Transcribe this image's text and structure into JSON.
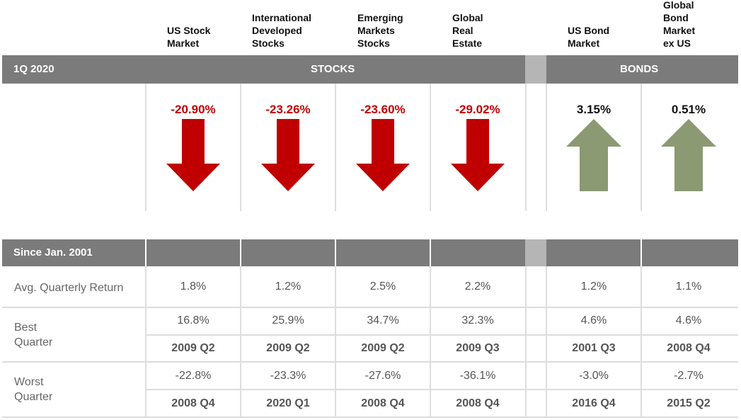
{
  "columns": [
    {
      "header": "US Stock\nMarket",
      "return": "-20.90%",
      "direction": "down",
      "avg": "1.8%",
      "best": "16.8%",
      "best_q": "2009 Q2",
      "worst": "-22.8%",
      "worst_q": "2008 Q4"
    },
    {
      "header": "International\nDeveloped\nStocks",
      "return": "-23.26%",
      "direction": "down",
      "avg": "1.2%",
      "best": "25.9%",
      "best_q": "2009 Q2",
      "worst": "-23.3%",
      "worst_q": "2020 Q1"
    },
    {
      "header": "Emerging\nMarkets\nStocks",
      "return": "-23.60%",
      "direction": "down",
      "avg": "2.5%",
      "best": "34.7%",
      "best_q": "2009 Q2",
      "worst": "-27.6%",
      "worst_q": "2008 Q4"
    },
    {
      "header": "Global\nReal\nEstate",
      "return": "-29.02%",
      "direction": "down",
      "avg": "2.2%",
      "best": "32.3%",
      "best_q": "2009 Q3",
      "worst": "-36.1%",
      "worst_q": "2008 Q4"
    },
    {
      "header": "US Bond\nMarket",
      "return": "3.15%",
      "direction": "up",
      "avg": "1.2%",
      "best": "4.6%",
      "best_q": "2001 Q3",
      "worst": "-3.0%",
      "worst_q": "2016 Q4"
    },
    {
      "header": "Global\nBond\nMarket\nex US",
      "return": "0.51%",
      "direction": "up",
      "avg": "1.1%",
      "best": "4.6%",
      "best_q": "2008 Q4",
      "worst": "-2.7%",
      "worst_q": "2015 Q2"
    }
  ],
  "bar1": {
    "period": "1Q 2020",
    "stocks": "STOCKS",
    "bonds": "BONDS"
  },
  "bar2": {
    "period": "Since Jan. 2001"
  },
  "rows": {
    "avg": "Avg. Quarterly Return",
    "best": "Best\nQuarter",
    "worst": "Worst\nQuarter"
  },
  "colors": {
    "down": "#c00000",
    "up": "#8b9a72",
    "bar": "#7b7b7b",
    "bar_light": "#b5b5b5"
  },
  "chart_data": {
    "type": "table",
    "title": "",
    "period_label": "1Q 2020",
    "groups": [
      {
        "name": "STOCKS",
        "categories": [
          "US Stock Market",
          "International Developed Stocks",
          "Emerging Markets Stocks",
          "Global Real Estate"
        ]
      },
      {
        "name": "BONDS",
        "categories": [
          "US Bond Market",
          "Global Bond Market ex US"
        ]
      }
    ],
    "categories": [
      "US Stock Market",
      "International Developed Stocks",
      "Emerging Markets Stocks",
      "Global Real Estate",
      "US Bond Market",
      "Global Bond Market ex US"
    ],
    "returns_1q2020": [
      -20.9,
      -23.26,
      -23.6,
      -29.02,
      3.15,
      0.51
    ],
    "since_label": "Since Jan. 2001",
    "avg_quarterly_return": [
      1.8,
      1.2,
      2.5,
      2.2,
      1.2,
      1.1
    ],
    "best_quarter": [
      16.8,
      25.9,
      34.7,
      32.3,
      4.6,
      4.6
    ],
    "best_quarter_period": [
      "2009 Q2",
      "2009 Q2",
      "2009 Q2",
      "2009 Q3",
      "2001 Q3",
      "2008 Q4"
    ],
    "worst_quarter": [
      -22.8,
      -23.3,
      -27.6,
      -36.1,
      -3.0,
      -2.7
    ],
    "worst_quarter_period": [
      "2008 Q4",
      "2020 Q1",
      "2008 Q4",
      "2008 Q4",
      "2016 Q4",
      "2015 Q2"
    ]
  }
}
